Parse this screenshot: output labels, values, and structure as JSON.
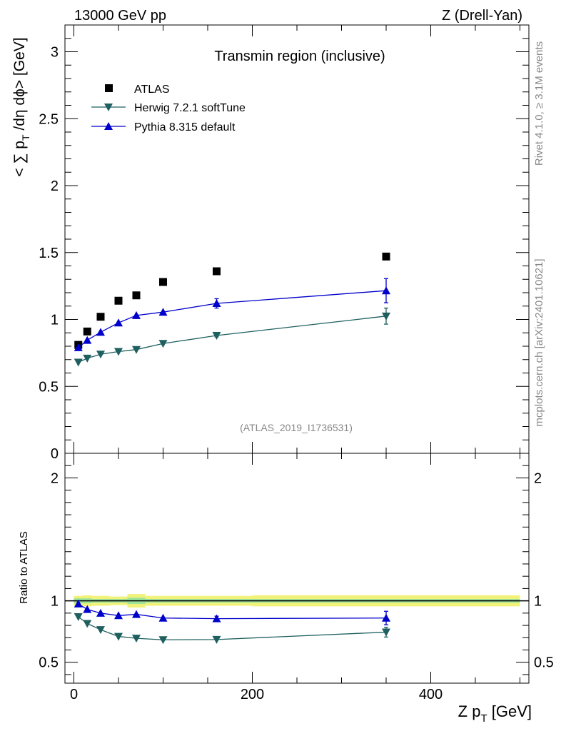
{
  "header": {
    "energy_label": "13000 GeV pp",
    "process_label": "Z (Drell-Yan)"
  },
  "side_labels": {
    "rivet": "Rivet 4.1.0, ≥ 3.1M events",
    "mcplots": "mcplots.cern.ch [arXiv:2401.10621]"
  },
  "chart_data": [
    {
      "type": "scatter",
      "title": "Transmin region (inclusive)",
      "watermark": "(ATLAS_2019_I1736531)",
      "ylabel": "< ∑ p_T /dη dϕ> [GeV]",
      "xlabel": "Z p_T [GeV]",
      "xlim": [
        -10,
        510
      ],
      "ylim": [
        0,
        3.2
      ],
      "yticks": [
        0,
        0.5,
        1,
        1.5,
        2,
        2.5,
        3
      ],
      "ytick_labels": [
        "0",
        "0.5",
        "1",
        "1.5",
        "2",
        "2.5",
        "3"
      ],
      "legend_position": "top-left",
      "series": [
        {
          "name": "ATLAS",
          "marker": "square",
          "color": "#000000",
          "x": [
            5,
            15,
            30,
            50,
            70,
            100,
            160,
            350
          ],
          "y": [
            0.81,
            0.91,
            1.02,
            1.14,
            1.18,
            1.28,
            1.36,
            1.47
          ],
          "err": [
            0,
            0,
            0,
            0,
            0,
            0,
            0,
            0
          ]
        },
        {
          "name": "Herwig 7.2.1 softTune",
          "marker": "triangle-down",
          "color": "#1e5f5f",
          "x": [
            5,
            15,
            30,
            50,
            70,
            100,
            160,
            350
          ],
          "y": [
            0.68,
            0.71,
            0.74,
            0.76,
            0.775,
            0.82,
            0.88,
            1.025
          ],
          "err": [
            0,
            0,
            0,
            0,
            0,
            0,
            0.01,
            0.06
          ]
        },
        {
          "name": "Pythia 8.315 default",
          "marker": "triangle-up",
          "color": "#0000cc",
          "x": [
            5,
            15,
            30,
            50,
            70,
            100,
            160,
            350
          ],
          "y": [
            0.79,
            0.845,
            0.905,
            0.975,
            1.03,
            1.055,
            1.12,
            1.215
          ],
          "err": [
            0,
            0,
            0,
            0,
            0,
            0,
            0.035,
            0.09
          ]
        }
      ]
    },
    {
      "type": "scatter",
      "title": "Ratio to ATLAS",
      "ylabel": "Ratio to ATLAS",
      "xlabel": "Z p_T [GeV]",
      "xlim": [
        -10,
        510
      ],
      "ylim": [
        0.33,
        2.2
      ],
      "xticks": [
        0,
        200,
        400
      ],
      "xtick_labels": [
        "0",
        "200",
        "400"
      ],
      "yticks": [
        0.5,
        1,
        2
      ],
      "ytick_labels": [
        "0.5",
        "1",
        "2"
      ],
      "reference": 1,
      "band": {
        "edges": [
          0,
          10,
          20,
          40,
          60,
          80,
          120,
          200,
          500
        ],
        "inner": [
          0.02,
          0.02,
          0.015,
          0.015,
          0.025,
          0.015,
          0.015,
          0.015
        ],
        "outer": [
          0.04,
          0.045,
          0.04,
          0.035,
          0.055,
          0.04,
          0.04,
          0.045
        ],
        "inner_color": "#9be29b",
        "outer_color": "#f2f27a"
      },
      "series": [
        {
          "name": "Herwig 7.2.1 softTune",
          "marker": "triangle-down",
          "color": "#1e5f5f",
          "x": [
            5,
            15,
            30,
            50,
            70,
            100,
            160,
            350
          ],
          "y": [
            0.87,
            0.815,
            0.765,
            0.71,
            0.695,
            0.683,
            0.685,
            0.745
          ],
          "err": [
            0,
            0,
            0,
            0,
            0,
            0,
            0,
            0.04
          ]
        },
        {
          "name": "Pythia 8.315 default",
          "marker": "triangle-up",
          "color": "#0000cc",
          "x": [
            5,
            15,
            30,
            50,
            70,
            100,
            160,
            350
          ],
          "y": [
            0.975,
            0.93,
            0.9,
            0.88,
            0.89,
            0.86,
            0.855,
            0.86
          ],
          "err": [
            0,
            0,
            0,
            0,
            0,
            0,
            0.02,
            0.055
          ]
        }
      ]
    }
  ]
}
